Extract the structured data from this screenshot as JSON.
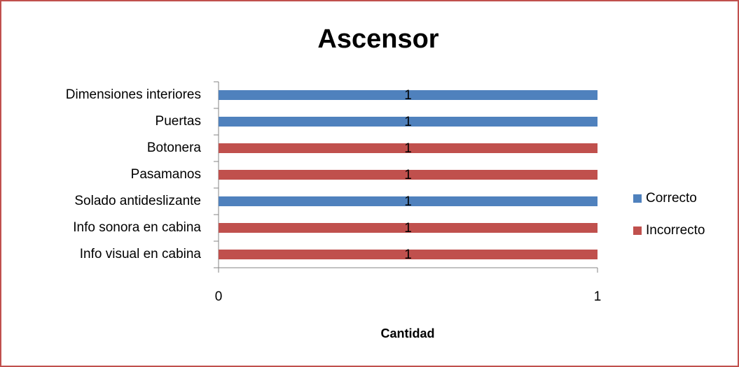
{
  "chart_data": {
    "type": "stacked-bar-horizontal",
    "title": "Ascensor",
    "categories": [
      "Dimensiones interiores",
      "Puertas",
      "Botonera",
      "Pasamanos",
      "Solado antideslizante",
      "Info sonora en cabina",
      "Info visual en cabina"
    ],
    "series": [
      {
        "name": "Correcto",
        "color": "#4f81bd",
        "values": [
          1,
          1,
          null,
          null,
          1,
          null,
          null
        ]
      },
      {
        "name": "Incorrecto",
        "color": "#c0504d",
        "values": [
          null,
          null,
          1,
          1,
          null,
          1,
          1
        ]
      }
    ],
    "xlim": [
      0,
      1
    ],
    "xticks": [
      0,
      1
    ],
    "xlabel": "Cantidad",
    "legend": "right"
  }
}
